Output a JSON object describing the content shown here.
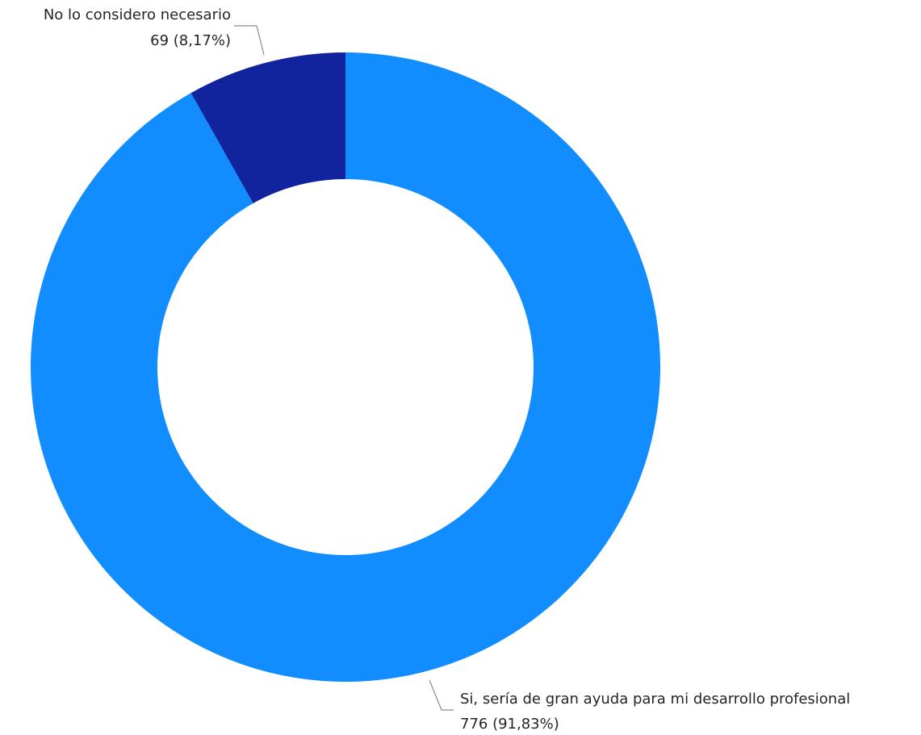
{
  "chart_data": {
    "type": "pie",
    "variant": "donut",
    "title": "",
    "slices": [
      {
        "label": "Si, sería de gran ayuda para mi desarrollo profesional",
        "value": 776,
        "value_text": "776 (91,83%)",
        "percent": 91.83,
        "color": "#118DFF"
      },
      {
        "label": "No lo considero necesario",
        "value": 69,
        "value_text": "69 (8,17%)",
        "percent": 8.17,
        "color": "#12239E"
      }
    ],
    "legend": "none",
    "data_labels": "outside"
  }
}
